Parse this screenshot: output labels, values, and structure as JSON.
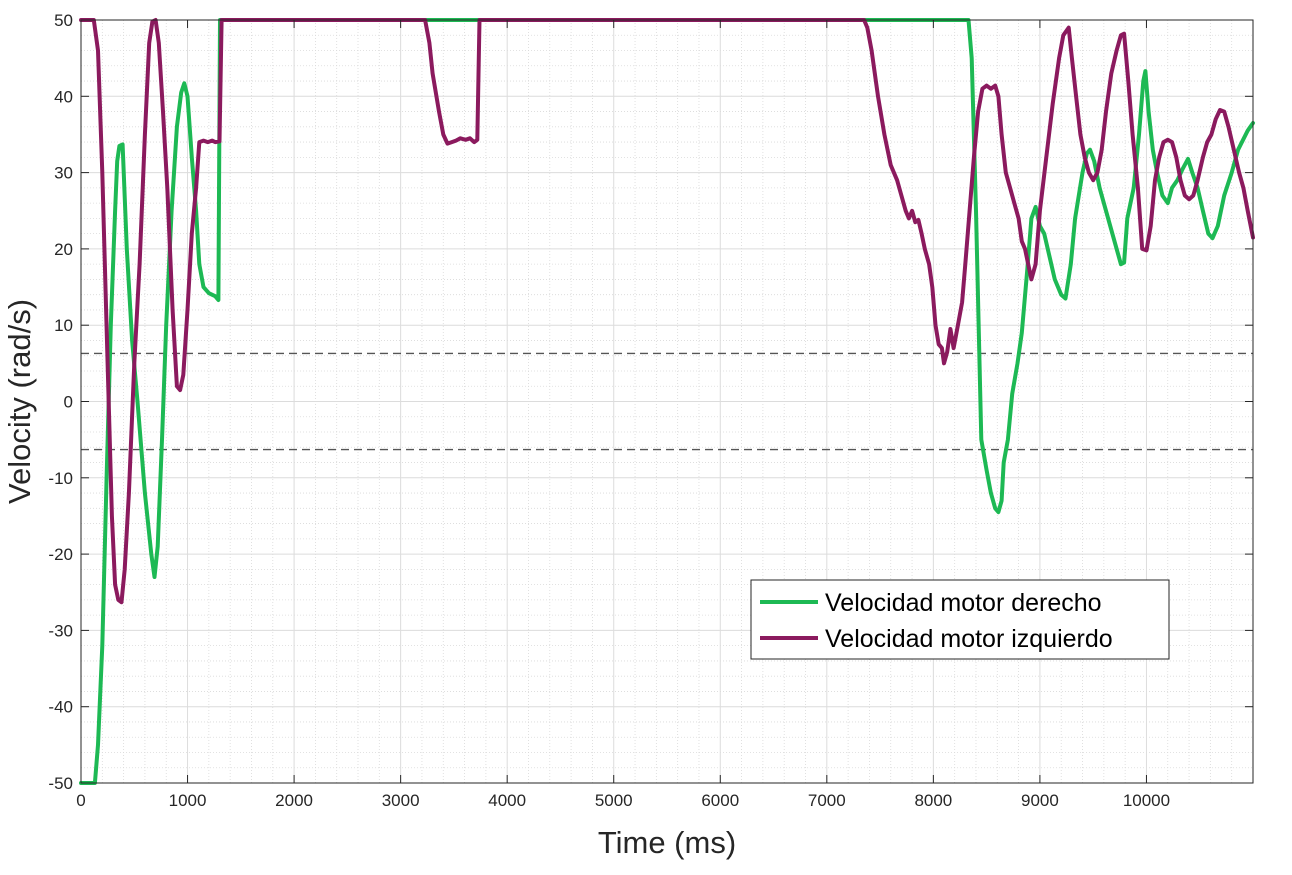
{
  "chart_data": {
    "type": "line",
    "title": "",
    "xlabel": "Time (ms)",
    "ylabel": "Velocity (rad/s)",
    "xlim": [
      0,
      11000
    ],
    "ylim": [
      -50,
      50
    ],
    "x_ticks": [
      0,
      1000,
      2000,
      3000,
      4000,
      5000,
      6000,
      7000,
      8000,
      9000,
      10000
    ],
    "y_ticks": [
      -50,
      -40,
      -30,
      -20,
      -10,
      0,
      10,
      20,
      30,
      40,
      50
    ],
    "grid": "major-and-minor",
    "legend_position": "lower-right",
    "reference_lines": [
      {
        "y": 6.3,
        "style": "dashed",
        "color": "#555555"
      },
      {
        "y": -6.3,
        "style": "dashed",
        "color": "#555555"
      }
    ],
    "series": [
      {
        "name": "Velocidad motor derecho",
        "color": "#1db954",
        "points": [
          [
            0,
            -50
          ],
          [
            130,
            -50
          ],
          [
            160,
            -45
          ],
          [
            200,
            -32
          ],
          [
            240,
            -10
          ],
          [
            280,
            10
          ],
          [
            320,
            25
          ],
          [
            340,
            31.5
          ],
          [
            360,
            33.5
          ],
          [
            390,
            33.7
          ],
          [
            430,
            20
          ],
          [
            480,
            8
          ],
          [
            530,
            0
          ],
          [
            600,
            -12
          ],
          [
            660,
            -20
          ],
          [
            690,
            -23
          ],
          [
            720,
            -19
          ],
          [
            760,
            -5
          ],
          [
            800,
            10
          ],
          [
            850,
            25
          ],
          [
            900,
            36
          ],
          [
            940,
            40.5
          ],
          [
            970,
            41.7
          ],
          [
            1000,
            40
          ],
          [
            1040,
            32
          ],
          [
            1080,
            25
          ],
          [
            1110,
            18
          ],
          [
            1150,
            15
          ],
          [
            1200,
            14.2
          ],
          [
            1260,
            13.8
          ],
          [
            1290,
            13.3
          ],
          [
            1305,
            50
          ],
          [
            3200,
            50
          ],
          [
            3260,
            50
          ],
          [
            4000,
            50
          ],
          [
            8330,
            50
          ],
          [
            8360,
            45
          ],
          [
            8400,
            25
          ],
          [
            8450,
            -5
          ],
          [
            8500,
            -9
          ],
          [
            8540,
            -12
          ],
          [
            8580,
            -14
          ],
          [
            8610,
            -14.5
          ],
          [
            8640,
            -13
          ],
          [
            8660,
            -8
          ],
          [
            8700,
            -5
          ],
          [
            8740,
            1
          ],
          [
            8790,
            5
          ],
          [
            8830,
            9
          ],
          [
            8880,
            17
          ],
          [
            8920,
            24
          ],
          [
            8960,
            25.5
          ],
          [
            9000,
            23
          ],
          [
            9040,
            22
          ],
          [
            9090,
            19
          ],
          [
            9140,
            16
          ],
          [
            9200,
            14
          ],
          [
            9240,
            13.5
          ],
          [
            9290,
            18
          ],
          [
            9330,
            24
          ],
          [
            9400,
            30
          ],
          [
            9440,
            32.5
          ],
          [
            9470,
            33
          ],
          [
            9510,
            31.5
          ],
          [
            9560,
            28
          ],
          [
            9620,
            25
          ],
          [
            9700,
            21
          ],
          [
            9760,
            18
          ],
          [
            9790,
            18.2
          ],
          [
            9820,
            24
          ],
          [
            9880,
            28
          ],
          [
            9930,
            35
          ],
          [
            9970,
            42
          ],
          [
            9990,
            43.3
          ],
          [
            10020,
            38
          ],
          [
            10060,
            33
          ],
          [
            10100,
            30
          ],
          [
            10150,
            27
          ],
          [
            10200,
            26
          ],
          [
            10240,
            28
          ],
          [
            10290,
            29
          ],
          [
            10340,
            30.5
          ],
          [
            10390,
            31.8
          ],
          [
            10430,
            30
          ],
          [
            10480,
            28
          ],
          [
            10530,
            25
          ],
          [
            10580,
            22
          ],
          [
            10620,
            21.4
          ],
          [
            10670,
            23
          ],
          [
            10730,
            27
          ],
          [
            10800,
            30
          ],
          [
            10860,
            33
          ],
          [
            10950,
            35.5
          ],
          [
            11000,
            36.5
          ]
        ]
      },
      {
        "name": "Velocidad motor izquierdo",
        "color": "#8b1a5e",
        "points": [
          [
            0,
            50
          ],
          [
            120,
            50
          ],
          [
            160,
            46
          ],
          [
            200,
            30
          ],
          [
            250,
            5
          ],
          [
            290,
            -15
          ],
          [
            320,
            -24
          ],
          [
            350,
            -26
          ],
          [
            380,
            -26.3
          ],
          [
            410,
            -22
          ],
          [
            450,
            -12
          ],
          [
            500,
            5
          ],
          [
            550,
            18
          ],
          [
            600,
            35
          ],
          [
            640,
            47
          ],
          [
            670,
            49.8
          ],
          [
            700,
            50
          ],
          [
            730,
            47
          ],
          [
            770,
            38
          ],
          [
            810,
            28
          ],
          [
            860,
            12
          ],
          [
            900,
            2
          ],
          [
            930,
            1.5
          ],
          [
            960,
            3.5
          ],
          [
            1000,
            12
          ],
          [
            1040,
            22
          ],
          [
            1080,
            28
          ],
          [
            1110,
            34
          ],
          [
            1150,
            34.2
          ],
          [
            1190,
            34
          ],
          [
            1230,
            34.2
          ],
          [
            1260,
            34
          ],
          [
            1300,
            34.1
          ],
          [
            1320,
            50
          ],
          [
            3230,
            50
          ],
          [
            3270,
            47
          ],
          [
            3300,
            43
          ],
          [
            3360,
            38
          ],
          [
            3400,
            35
          ],
          [
            3440,
            33.8
          ],
          [
            3480,
            34
          ],
          [
            3520,
            34.2
          ],
          [
            3560,
            34.5
          ],
          [
            3610,
            34.3
          ],
          [
            3650,
            34.5
          ],
          [
            3690,
            34
          ],
          [
            3720,
            34.3
          ],
          [
            3740,
            50
          ],
          [
            7350,
            50
          ],
          [
            7380,
            49
          ],
          [
            7420,
            46
          ],
          [
            7480,
            40
          ],
          [
            7540,
            35
          ],
          [
            7600,
            31
          ],
          [
            7660,
            29
          ],
          [
            7700,
            27
          ],
          [
            7740,
            25
          ],
          [
            7770,
            24
          ],
          [
            7800,
            25
          ],
          [
            7830,
            23.5
          ],
          [
            7860,
            23.8
          ],
          [
            7890,
            22
          ],
          [
            7920,
            20
          ],
          [
            7960,
            18
          ],
          [
            7990,
            15
          ],
          [
            8020,
            10
          ],
          [
            8050,
            7.5
          ],
          [
            8080,
            7
          ],
          [
            8100,
            5
          ],
          [
            8130,
            6.5
          ],
          [
            8160,
            9.5
          ],
          [
            8190,
            7
          ],
          [
            8230,
            10
          ],
          [
            8270,
            13
          ],
          [
            8300,
            18
          ],
          [
            8340,
            25
          ],
          [
            8380,
            32
          ],
          [
            8420,
            38
          ],
          [
            8460,
            41
          ],
          [
            8500,
            41.4
          ],
          [
            8540,
            41
          ],
          [
            8580,
            41.4
          ],
          [
            8610,
            40
          ],
          [
            8640,
            35
          ],
          [
            8680,
            30
          ],
          [
            8720,
            28
          ],
          [
            8760,
            26
          ],
          [
            8800,
            24
          ],
          [
            8830,
            21
          ],
          [
            8860,
            20
          ],
          [
            8890,
            18
          ],
          [
            8920,
            16
          ],
          [
            8960,
            18
          ],
          [
            9000,
            25
          ],
          [
            9060,
            32
          ],
          [
            9120,
            39
          ],
          [
            9180,
            45
          ],
          [
            9220,
            48
          ],
          [
            9270,
            49
          ],
          [
            9300,
            45
          ],
          [
            9340,
            40
          ],
          [
            9380,
            35
          ],
          [
            9420,
            32
          ],
          [
            9460,
            30
          ],
          [
            9500,
            29
          ],
          [
            9540,
            30
          ],
          [
            9580,
            33
          ],
          [
            9620,
            38
          ],
          [
            9670,
            43
          ],
          [
            9720,
            46
          ],
          [
            9760,
            48
          ],
          [
            9790,
            48.2
          ],
          [
            9830,
            42
          ],
          [
            9870,
            35
          ],
          [
            9920,
            28
          ],
          [
            9960,
            20
          ],
          [
            10000,
            19.8
          ],
          [
            10040,
            23
          ],
          [
            10080,
            29
          ],
          [
            10120,
            32
          ],
          [
            10160,
            34
          ],
          [
            10200,
            34.3
          ],
          [
            10240,
            34
          ],
          [
            10280,
            32
          ],
          [
            10320,
            29
          ],
          [
            10360,
            27
          ],
          [
            10400,
            26.5
          ],
          [
            10440,
            27
          ],
          [
            10480,
            29
          ],
          [
            10530,
            32
          ],
          [
            10570,
            34
          ],
          [
            10610,
            35
          ],
          [
            10650,
            37
          ],
          [
            10690,
            38.2
          ],
          [
            10730,
            38
          ],
          [
            10770,
            36
          ],
          [
            10820,
            33
          ],
          [
            10870,
            30
          ],
          [
            10910,
            28
          ],
          [
            10950,
            25
          ],
          [
            11000,
            21.5
          ]
        ]
      }
    ]
  }
}
